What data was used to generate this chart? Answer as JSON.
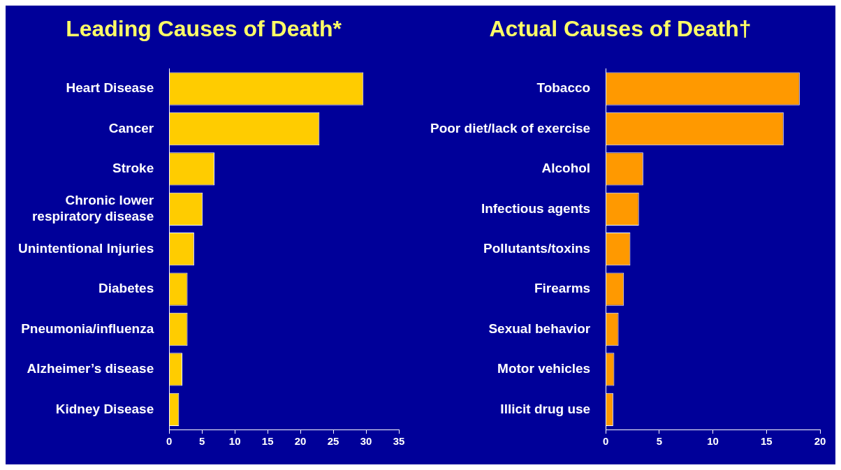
{
  "chart_data": [
    {
      "type": "bar",
      "orientation": "horizontal",
      "title": "Leading Causes of Death*",
      "categories": [
        "Heart Disease",
        "Cancer",
        "Stroke",
        "Chronic lower respiratory disease",
        "Unintentional Injuries",
        "Diabetes",
        "Pneumonia/influenza",
        "Alzheimer’s disease",
        "Kidney Disease"
      ],
      "values": [
        29.6,
        22.9,
        6.9,
        5.1,
        3.8,
        2.8,
        2.8,
        2.0,
        1.5
      ],
      "color": "#ffcc00",
      "xlim": [
        0,
        35
      ],
      "xticks": [
        0,
        5,
        10,
        15,
        20,
        25,
        30,
        35
      ]
    },
    {
      "type": "bar",
      "orientation": "horizontal",
      "title": "Actual Causes of Death†",
      "categories": [
        "Tobacco",
        "Poor diet/lack of exercise",
        "Alcohol",
        "Infectious agents",
        "Pollutants/toxins",
        "Firearms",
        "Sexual behavior",
        "Motor vehicles",
        "Illicit drug use"
      ],
      "values": [
        18.1,
        16.6,
        3.5,
        3.1,
        2.3,
        1.7,
        1.2,
        0.8,
        0.7
      ],
      "color": "#ff9900",
      "xlim": [
        0,
        20
      ],
      "xticks": [
        0,
        5,
        10,
        15,
        20
      ]
    }
  ]
}
